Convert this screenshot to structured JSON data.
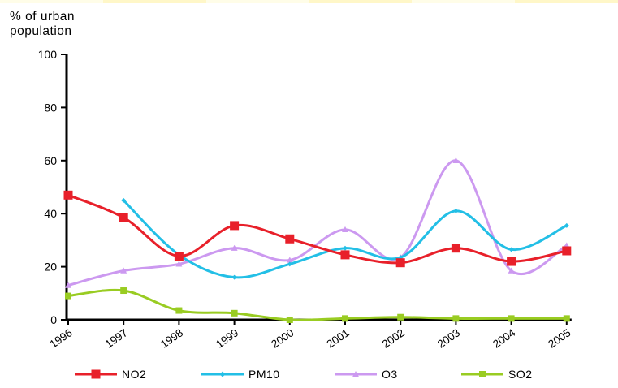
{
  "chart_data": {
    "type": "line",
    "ylabel": "% of urban\npopulation",
    "xlabel": "",
    "title": "",
    "categories": [
      "1996",
      "1997",
      "1998",
      "1999",
      "2000",
      "2001",
      "2002",
      "2003",
      "2004",
      "2005"
    ],
    "ylim": [
      0,
      100
    ],
    "yticks": [
      0,
      20,
      40,
      60,
      80,
      100
    ],
    "grid": false,
    "legend": "bottom",
    "series": [
      {
        "name": "NO2",
        "color": "#e8202a",
        "marker": "square",
        "smooth": true,
        "values": [
          47,
          38.5,
          24,
          35.5,
          30.5,
          24.5,
          21.5,
          27,
          22,
          26
        ]
      },
      {
        "name": "PM10",
        "color": "#23bfe6",
        "marker": "diamond",
        "smooth": true,
        "values": [
          null,
          45,
          24.5,
          16,
          21,
          27,
          23.5,
          41,
          26.5,
          35.5
        ]
      },
      {
        "name": "O3",
        "color": "#cc99f0",
        "marker": "triangle",
        "smooth": true,
        "values": [
          13,
          18.5,
          21,
          27,
          22.5,
          34,
          23.5,
          60,
          18.5,
          28
        ]
      },
      {
        "name": "SO2",
        "color": "#99cc22",
        "marker": "square",
        "smooth": true,
        "values": [
          9,
          11,
          3.5,
          2.5,
          0,
          0.5,
          1,
          0.5,
          0.5,
          0.5
        ]
      }
    ]
  }
}
